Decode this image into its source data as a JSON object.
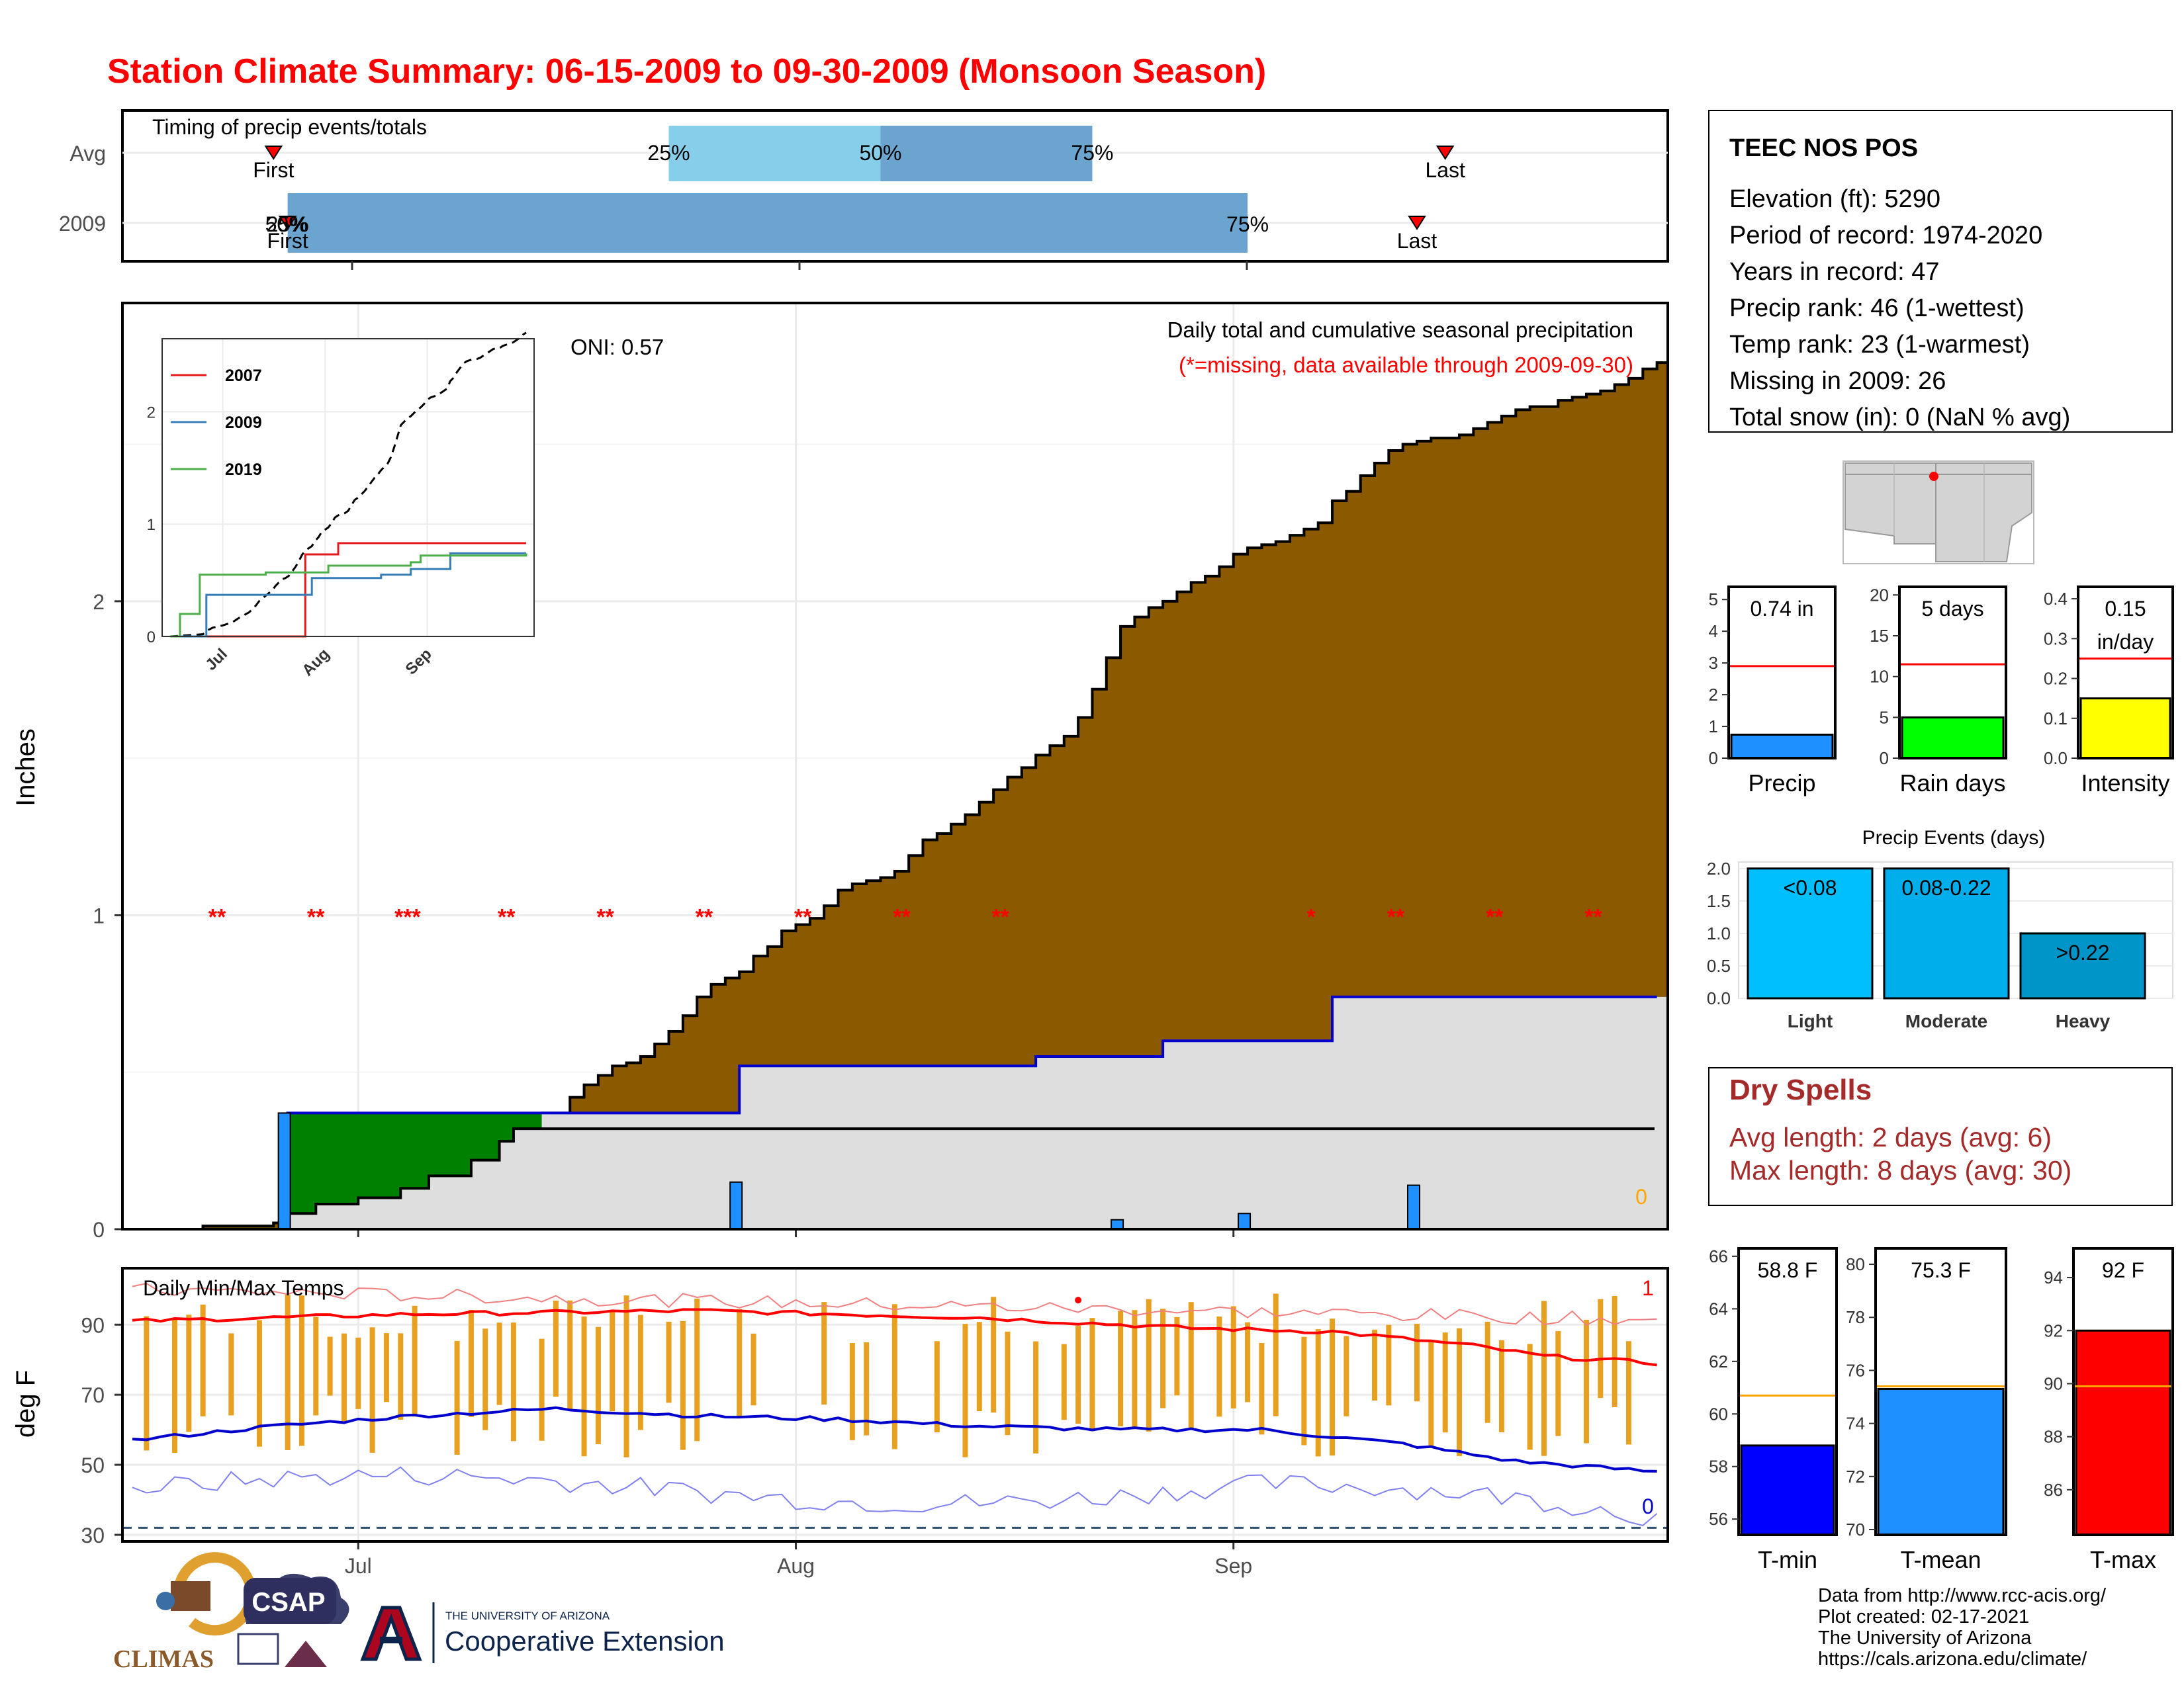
{
  "title": "Station Climate Summary: 06-15-2009 to 09-30-2009 (Monsoon Season)",
  "colors": {
    "title": "#FF0000",
    "cumulative_fill": "#8B5A00",
    "deficit_fill": "#008000",
    "climo_fill": "#DEDEDE",
    "year_line": "#0000CD",
    "daily_bar": "#1E90FF",
    "missing": "#FF0000",
    "tmax_line": "#FF0000",
    "tmin_line": "#0000CD",
    "temp_bar": "#E8A020",
    "timing_light": "#87CEEB",
    "timing_mid": "#6BA5CF",
    "precip_bar": "#1E90FF",
    "raindays_bar": "#00FF00",
    "intensity_bar": "#FFFF00",
    "light_bar": "#00BFFF",
    "moderate_bar": "#00AEEB",
    "heavy_bar": "#0095C8",
    "tmin_bar": "#0000FF",
    "tmean_bar": "#1E90FF",
    "tmax_bar": "#FF0000",
    "avg_line": "#FFA500",
    "dry_spells": "#A52A2A"
  },
  "timing": {
    "title": "Timing of precip events/totals",
    "row_avg": "Avg",
    "row_year": "2009",
    "first_label": "First",
    "last_label": "Last",
    "avg_q": [
      "25%",
      "50%",
      "75%"
    ],
    "year_q": [
      "25%",
      "50%",
      "75%"
    ],
    "avg_days": {
      "first": 10,
      "q25": 38,
      "q50": 53,
      "q75": 68,
      "last": 93
    },
    "year_days": {
      "first": 11,
      "q75": 79,
      "last": 91
    }
  },
  "station": {
    "name": "TEEC NOS POS",
    "lines": [
      "Elevation (ft): 5290",
      "Period of record: 1974-2020",
      "Years in record: 47",
      "Precip rank: 46 (1-wettest)",
      "Temp rank: 23 (1-warmest)",
      "Missing in 2009: 26",
      "Total snow (in): 0 (NaN % avg)"
    ]
  },
  "main_chart": {
    "y_label": "Inches",
    "y_ticks": [
      "0",
      "1",
      "2"
    ],
    "x_ticks": [
      "Jul",
      "Aug",
      "Sep"
    ],
    "oni": "ONI: 0.57",
    "subtitle1": "Daily total and cumulative seasonal precipitation",
    "subtitle2": "(*=missing, data available through 2009-09-30)",
    "zero_label": "0",
    "missing_marks": [
      {
        "day": 6,
        "text": "**"
      },
      {
        "day": 13,
        "text": "**"
      },
      {
        "day": 19.5,
        "text": "***"
      },
      {
        "day": 26.5,
        "text": "**"
      },
      {
        "day": 33.5,
        "text": "**"
      },
      {
        "day": 40.5,
        "text": "**"
      },
      {
        "day": 47.5,
        "text": "**"
      },
      {
        "day": 54.5,
        "text": "**"
      },
      {
        "day": 61.5,
        "text": "**"
      },
      {
        "day": 83.5,
        "text": "*"
      },
      {
        "day": 89.5,
        "text": "**"
      },
      {
        "day": 96.5,
        "text": "**"
      },
      {
        "day": 103.5,
        "text": "**"
      }
    ]
  },
  "inset": {
    "legend": [
      "2007",
      "2009",
      "2019"
    ],
    "y_ticks": [
      "0",
      "1",
      "2"
    ],
    "x_ticks": [
      "Jul",
      "Aug",
      "Sep"
    ]
  },
  "temp_chart": {
    "title": "Daily Min/Max Temps",
    "y_label": "deg F",
    "y_ticks": [
      "30",
      "50",
      "70",
      "90"
    ],
    "x_ticks": [
      "Jul",
      "Aug",
      "Sep"
    ],
    "count_max": "1",
    "count_min": "0"
  },
  "bars_small": [
    {
      "value_label": "0.74 in",
      "label": "Precip",
      "ticks": [
        "0",
        "1",
        "2",
        "3",
        "4",
        "5"
      ]
    },
    {
      "value_label": "5 days",
      "label": "Rain days",
      "ticks": [
        "0",
        "5",
        "10",
        "15",
        "20"
      ]
    },
    {
      "value_label": "0.15",
      "value_label2": "in/day",
      "label": "Intensity",
      "ticks": [
        "0.0",
        "0.1",
        "0.2",
        "0.3",
        "0.4"
      ]
    }
  ],
  "events": {
    "title": "Precip Events (days)",
    "ticks": [
      "0.0",
      "0.5",
      "1.0",
      "1.5",
      "2.0"
    ],
    "bars": [
      {
        "label": "Light",
        "value_label": "<0.08"
      },
      {
        "label": "Moderate",
        "value_label": "0.08-0.22"
      },
      {
        "label": "Heavy",
        "value_label": ">0.22"
      }
    ]
  },
  "dry_spells": {
    "title": "Dry Spells",
    "avg": "Avg length: 2 days (avg: 6)",
    "max": "Max length: 8 days (avg: 30)"
  },
  "temp_bars": [
    {
      "value_label": "58.8 F",
      "label": "T-min",
      "ticks": [
        "56",
        "58",
        "60",
        "62",
        "64",
        "66"
      ]
    },
    {
      "value_label": "75.3 F",
      "label": "T-mean",
      "ticks": [
        "70",
        "72",
        "74",
        "76",
        "78",
        "80"
      ]
    },
    {
      "value_label": "92 F",
      "label": "T-max",
      "ticks": [
        "86",
        "88",
        "90",
        "92",
        "94"
      ]
    }
  ],
  "footer": {
    "lines": [
      "Data from http://www.rcc-acis.org/",
      "Plot created: 02-17-2021",
      "The University of Arizona",
      "https://cals.arizona.edu/climate/"
    ],
    "climas": "CLIMAS",
    "csap": "CSAP",
    "ua_small": "THE UNIVERSITY OF ARIZONA",
    "ua_big": "Cooperative Extension"
  },
  "chart_data": [
    {
      "type": "area",
      "title": "Daily total and cumulative seasonal precipitation",
      "ylabel": "Inches",
      "ylim": [
        0,
        2.95
      ],
      "x_range": [
        "2009-06-15",
        "2009-09-30"
      ],
      "series": [
        {
          "name": "climatology cumulative",
          "x": [
            0,
            5,
            10,
            11,
            13,
            16,
            19,
            21,
            24,
            26,
            27,
            29,
            31,
            32,
            33,
            34,
            35,
            36,
            37,
            38,
            39,
            40,
            41,
            42,
            43,
            44,
            45,
            46,
            47,
            48,
            49,
            50,
            51,
            52,
            53,
            54,
            55,
            56,
            57,
            58,
            59,
            60,
            61,
            62,
            63,
            64,
            65,
            66,
            67,
            68,
            69,
            70,
            71,
            72,
            73,
            74,
            75,
            76,
            77,
            78,
            79,
            80,
            81,
            82,
            83,
            84,
            85,
            86,
            87,
            88,
            89,
            90,
            91,
            92,
            93,
            94,
            95,
            96,
            97,
            98,
            99,
            100,
            101,
            102,
            103,
            104,
            105,
            106,
            107,
            108
          ],
          "values": [
            0,
            0.01,
            0.02,
            0.05,
            0.08,
            0.1,
            0.13,
            0.17,
            0.22,
            0.28,
            0.32,
            0.37,
            0.42,
            0.46,
            0.49,
            0.52,
            0.53,
            0.55,
            0.59,
            0.63,
            0.68,
            0.74,
            0.78,
            0.8,
            0.82,
            0.87,
            0.9,
            0.95,
            0.97,
            0.99,
            1.03,
            1.08,
            1.1,
            1.11,
            1.12,
            1.14,
            1.19,
            1.24,
            1.26,
            1.29,
            1.32,
            1.36,
            1.4,
            1.44,
            1.47,
            1.51,
            1.54,
            1.57,
            1.63,
            1.72,
            1.82,
            1.92,
            1.95,
            1.98,
            2.0,
            2.03,
            2.06,
            2.08,
            2.11,
            2.15,
            2.17,
            2.18,
            2.19,
            2.21,
            2.23,
            2.25,
            2.32,
            2.35,
            2.4,
            2.44,
            2.48,
            2.5,
            2.51,
            2.52,
            2.52,
            2.53,
            2.55,
            2.57,
            2.59,
            2.61,
            2.62,
            2.62,
            2.64,
            2.65,
            2.66,
            2.67,
            2.69,
            2.71,
            2.74,
            2.76
          ]
        },
        {
          "name": "2009 cumulative",
          "x": [
            0,
            11,
            43,
            64,
            73,
            85,
            108
          ],
          "values": [
            0,
            0.37,
            0.52,
            0.55,
            0.6,
            0.74,
            0.74
          ]
        },
        {
          "name": "2009 daily",
          "x": [
            11,
            43,
            70,
            79,
            91
          ],
          "values": [
            0.37,
            0.15,
            0.03,
            0.05,
            0.14
          ]
        }
      ]
    },
    {
      "type": "line",
      "title": "inset cumulative comparison",
      "ylim": [
        0,
        2.65
      ],
      "series": [
        {
          "name": "2007",
          "x": [
            0,
            38,
            41,
            51,
            108
          ],
          "values": [
            0,
            0,
            0.73,
            0.83,
            0.83
          ]
        },
        {
          "name": "2009",
          "x": [
            0,
            11,
            43,
            64,
            73,
            85,
            108
          ],
          "values": [
            0,
            0.37,
            0.52,
            0.55,
            0.6,
            0.74,
            0.74
          ]
        },
        {
          "name": "2019",
          "x": [
            0,
            3,
            9,
            29,
            48,
            73,
            76,
            108
          ],
          "values": [
            0,
            0.2,
            0.55,
            0.57,
            0.63,
            0.66,
            0.72,
            0.74
          ]
        }
      ]
    },
    {
      "type": "line",
      "title": "Daily Min/Max Temps",
      "ylabel": "deg F",
      "ylim": [
        30,
        108
      ],
      "series": [
        {
          "name": "avg max",
          "x": [
            0,
            20,
            40,
            60,
            75,
            85,
            95,
            100,
            108
          ],
          "values": [
            91,
            93,
            94,
            92,
            89,
            88,
            84,
            81,
            79
          ]
        },
        {
          "name": "avg min",
          "x": [
            0,
            10,
            20,
            30,
            40,
            50,
            60,
            70,
            80,
            90,
            98,
            108
          ],
          "values": [
            57,
            61,
            64,
            66,
            64,
            63,
            61,
            60,
            60,
            56,
            51,
            48
          ]
        }
      ]
    },
    {
      "type": "bar",
      "categories": [
        "Precip"
      ],
      "values": [
        0.74
      ],
      "avg": 2.9,
      "ylim": [
        0,
        5.4
      ]
    },
    {
      "type": "bar",
      "categories": [
        "Rain days"
      ],
      "values": [
        5
      ],
      "avg": 11.5,
      "ylim": [
        0,
        21
      ]
    },
    {
      "type": "bar",
      "categories": [
        "Intensity"
      ],
      "values": [
        0.15
      ],
      "avg": 0.25,
      "ylim": [
        0,
        0.43
      ]
    },
    {
      "type": "bar",
      "title": "Precip Events (days)",
      "categories": [
        "Light",
        "Moderate",
        "Heavy"
      ],
      "values": [
        2,
        2,
        1
      ],
      "ylim": [
        0,
        2.1
      ]
    },
    {
      "type": "bar",
      "categories": [
        "T-min"
      ],
      "values": [
        58.8
      ],
      "avg": 60.7,
      "ylim": [
        55.4,
        66.3
      ]
    },
    {
      "type": "bar",
      "categories": [
        "T-mean"
      ],
      "values": [
        75.3
      ],
      "avg": 75.4,
      "ylim": [
        69.8,
        80.6
      ]
    },
    {
      "type": "bar",
      "categories": [
        "T-max"
      ],
      "values": [
        92
      ],
      "avg": 89.9,
      "ylim": [
        84.3,
        95.1
      ]
    }
  ]
}
